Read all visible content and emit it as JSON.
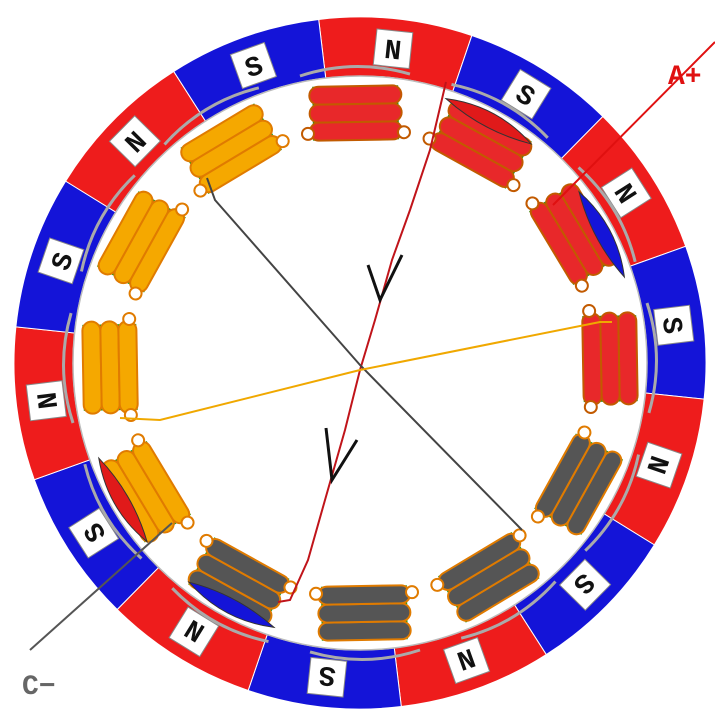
{
  "magnets": [
    "N",
    "S",
    "N",
    "S",
    "N",
    "S",
    "N",
    "S",
    "N",
    "S",
    "N",
    "S",
    "N",
    "S"
  ],
  "labels": {
    "phase_a_plus": "A+",
    "phase_c_minus": "C−"
  }
}
